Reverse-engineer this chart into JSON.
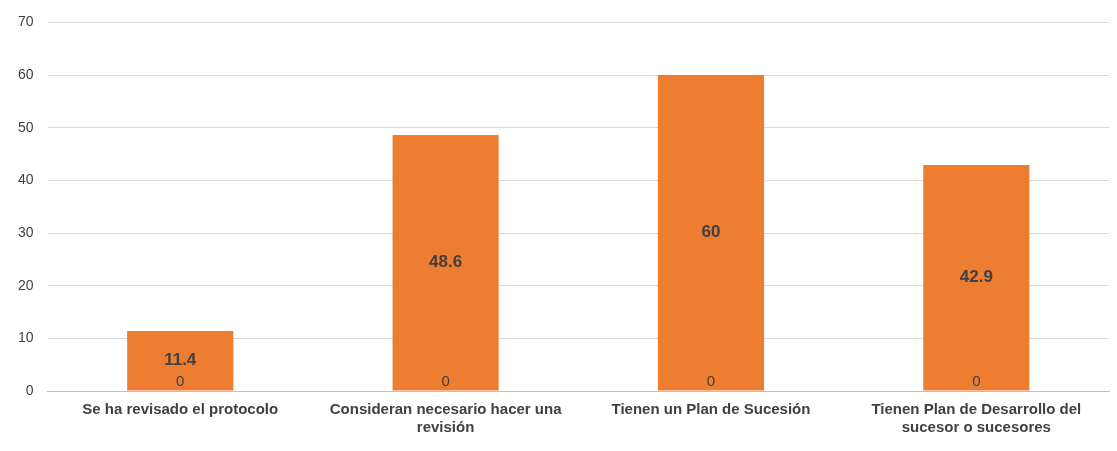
{
  "chart_data": {
    "type": "bar",
    "data_labels": true,
    "grid": "y",
    "legend": false,
    "categories": [
      "Se ha revisado el protocolo",
      "Consideran necesario hacer una revisión",
      "Tienen un Plan de Sucesión",
      "Tienen Plan de Desarrollo del sucesor o sucesores"
    ],
    "values": [
      11.4,
      48.6,
      60,
      42.9
    ],
    "color": "#ed7d31",
    "annotations": [
      {
        "text": "0",
        "x": "Se ha revisado el protocolo",
        "y": 0
      },
      {
        "text": "0",
        "x": "Consideran necesario hacer una revisión",
        "y": 0
      },
      {
        "text": "0",
        "x": "Tienen un Plan de Sucesión",
        "y": 0
      },
      {
        "text": "0",
        "x": "Tienen Plan de Desarrollo del sucesor o sucesores",
        "y": 0
      }
    ],
    "ylim": [
      0,
      70
    ],
    "yticks": [
      0,
      10,
      20,
      30,
      40,
      50,
      60,
      70
    ]
  }
}
